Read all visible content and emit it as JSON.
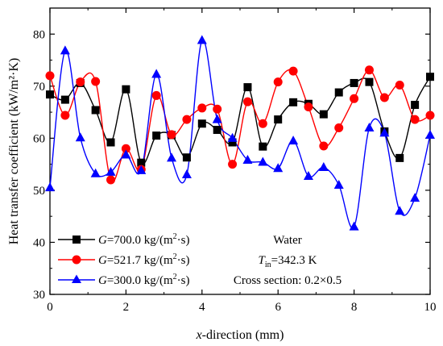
{
  "chart_data": {
    "type": "line",
    "xlabel_italic": "x",
    "xlabel_rest": "-direction (mm)",
    "ylabel": "Heat transfer coefficient (kW/m²·K)",
    "xlim": [
      0,
      10
    ],
    "ylim": [
      30,
      85
    ],
    "x_ticks": [
      0,
      2,
      4,
      6,
      8,
      10
    ],
    "y_ticks": [
      30,
      40,
      50,
      60,
      70,
      80
    ],
    "grid": false,
    "legend_placement": "bottom-left",
    "series": [
      {
        "name_prefix": "G",
        "name_rest": "=700.0 kg/(m",
        "name_sup": "2",
        "name_end": "·s)",
        "color": "#000000",
        "marker": "square",
        "x": [
          0,
          0.4,
          0.8,
          1.2,
          1.6,
          2.0,
          2.4,
          2.8,
          3.2,
          3.6,
          4.0,
          4.4,
          4.8,
          5.2,
          5.6,
          6.0,
          6.4,
          6.8,
          7.2,
          7.6,
          8.0,
          8.4,
          8.8,
          9.2,
          9.6,
          10.0
        ],
        "values": [
          68.4,
          67.4,
          70.6,
          65.4,
          59.2,
          69.4,
          55.3,
          60.5,
          60.6,
          56.3,
          62.8,
          61.6,
          59.2,
          69.8,
          58.4,
          63.6,
          66.9,
          66.6,
          64.6,
          68.8,
          70.6,
          70.8,
          61.3,
          56.2,
          66.4,
          71.8
        ]
      },
      {
        "name_prefix": "G",
        "name_rest": "=521.7 kg/(m",
        "name_sup": "2",
        "name_end": "·s)",
        "color": "#ff0000",
        "marker": "circle",
        "x": [
          0,
          0.4,
          0.8,
          1.2,
          1.6,
          2.0,
          2.4,
          2.8,
          3.2,
          3.6,
          4.0,
          4.4,
          4.8,
          5.2,
          5.6,
          6.0,
          6.4,
          6.8,
          7.2,
          7.6,
          8.0,
          8.4,
          8.8,
          9.2,
          9.6,
          10.0
        ],
        "values": [
          72.0,
          64.4,
          70.8,
          70.9,
          52.0,
          58.0,
          54.0,
          68.2,
          60.7,
          63.6,
          65.8,
          65.6,
          55.0,
          67.0,
          62.8,
          70.8,
          72.9,
          66.0,
          58.5,
          62.0,
          67.6,
          73.1,
          67.8,
          70.2,
          63.6,
          64.4
        ]
      },
      {
        "name_prefix": "G",
        "name_rest": "=300.0 kg/(m",
        "name_sup": "2",
        "name_end": "·s)",
        "color": "#0000ff",
        "marker": "triangle",
        "x": [
          0,
          0.4,
          0.8,
          1.2,
          1.6,
          2.0,
          2.4,
          2.8,
          3.2,
          3.6,
          4.0,
          4.4,
          4.8,
          5.2,
          5.6,
          6.0,
          6.4,
          6.8,
          7.2,
          7.6,
          8.0,
          8.4,
          8.8,
          9.2,
          9.6,
          10.0
        ],
        "values": [
          50.5,
          76.8,
          60.1,
          53.2,
          53.5,
          56.8,
          53.8,
          72.3,
          56.2,
          53.0,
          78.8,
          63.6,
          60.0,
          55.8,
          55.4,
          54.2,
          59.5,
          52.7,
          54.4,
          51.0,
          43.0,
          62.0,
          61.0,
          46.0,
          48.5,
          60.6
        ]
      }
    ],
    "annotations": {
      "fluid": "Water",
      "tin_symbol": "T",
      "tin_sub": "in",
      "tin_value": "=342.3 K",
      "cross_section": "Cross section: 0.2×0.5"
    }
  }
}
